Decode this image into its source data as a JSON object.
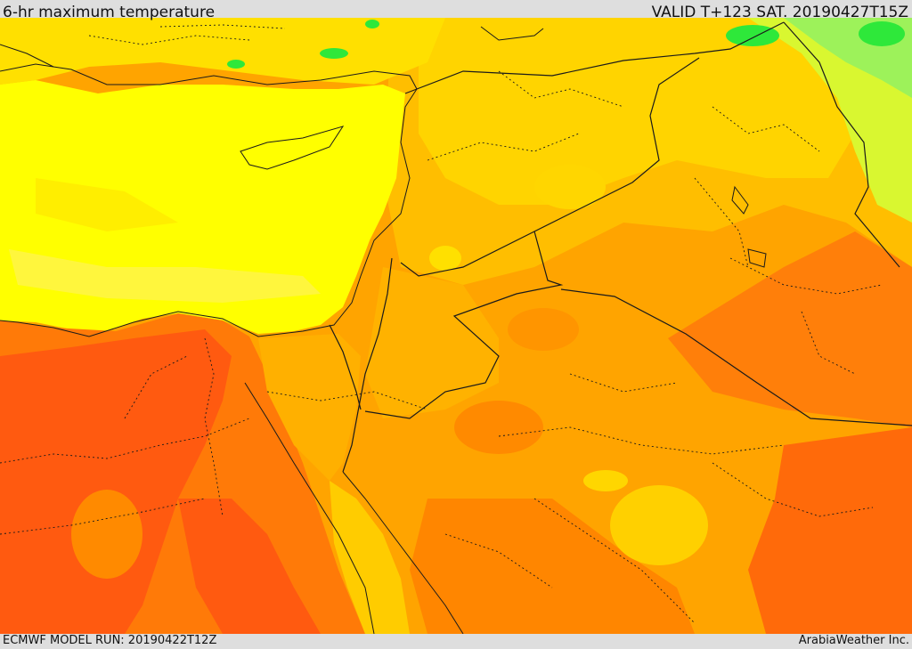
{
  "header": {
    "title": "6-hr maximum temperature",
    "valid": "VALID T+123 SAT. 20190427T15Z"
  },
  "footer": {
    "model_run": "ECMWF MODEL RUN: 20190422T12Z",
    "credit": "ArabiaWeather Inc."
  },
  "palette": {
    "green": "#2ee83a",
    "light_green": "#9df25a",
    "yellow_green": "#d9f730",
    "yellow": "#ffff00",
    "gold": "#ffd600",
    "light_orange": "#ffb400",
    "orange": "#ff9200",
    "dark_orange": "#ff6a0a",
    "red_orange": "#ff4a12",
    "boundary": "#1a1a1a"
  }
}
